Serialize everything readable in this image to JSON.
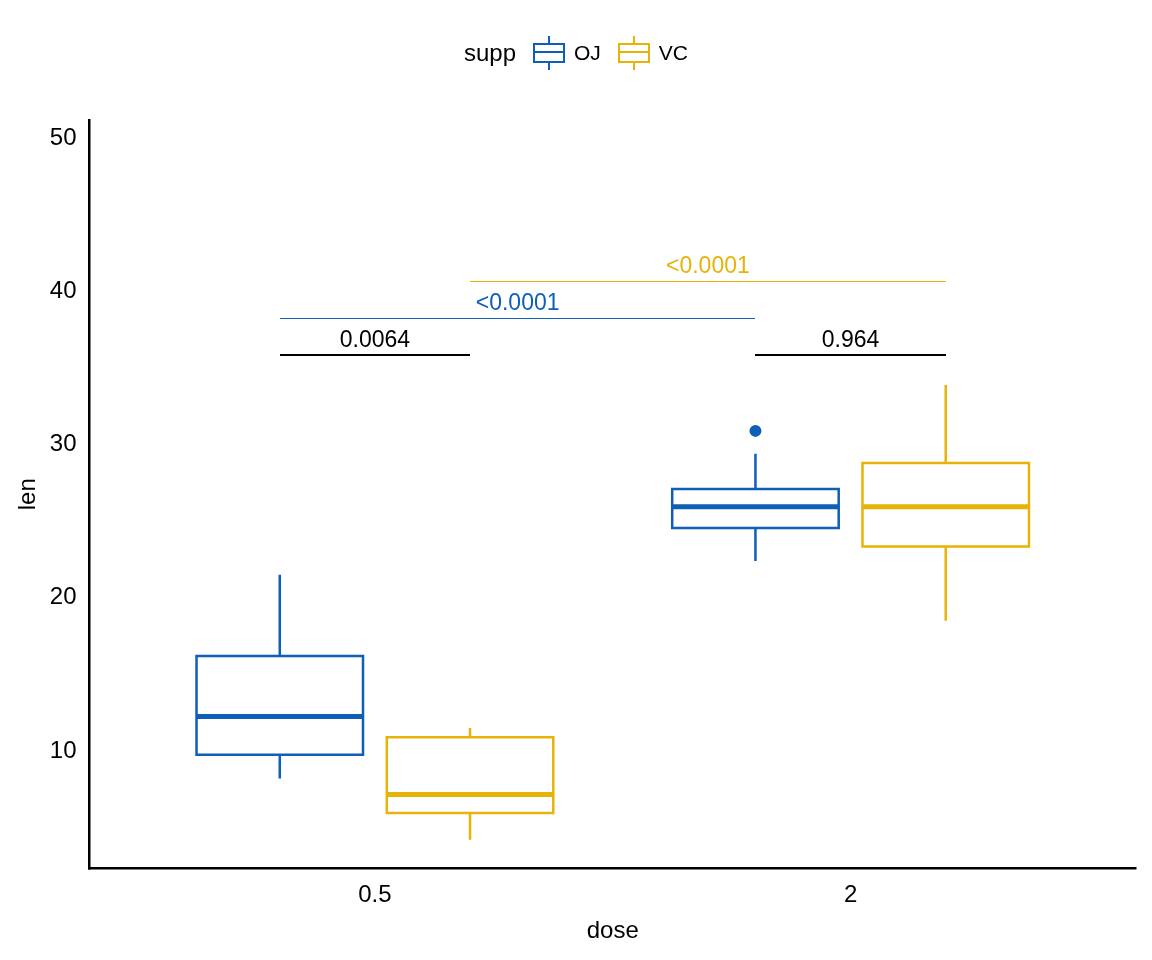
{
  "chart_data": {
    "type": "box",
    "xlabel": "dose",
    "ylabel": "len",
    "legend_title": "supp",
    "legend": "top",
    "grid": false,
    "categories": [
      "0.5",
      "2"
    ],
    "ylim": [
      2.33,
      51.2
    ],
    "yticks": [
      10,
      20,
      30,
      40,
      50
    ],
    "series": [
      {
        "name": "OJ",
        "color": "#0d5fb8",
        "boxes": [
          {
            "low": 8.2,
            "q1": 9.75,
            "median": 12.25,
            "q3": 16.2,
            "high": 21.5
          },
          {
            "low": 22.4,
            "q1": 24.55,
            "median": 25.95,
            "q3": 27.1,
            "high": 29.4,
            "outliers": [
              30.9
            ]
          }
        ]
      },
      {
        "name": "VC",
        "color": "#e8b308",
        "boxes": [
          {
            "low": 4.2,
            "q1": 5.95,
            "median": 7.15,
            "q3": 10.9,
            "high": 11.5
          },
          {
            "low": 18.5,
            "q1": 23.35,
            "median": 25.95,
            "q3": 28.8,
            "high": 33.9
          }
        ]
      }
    ],
    "annotations": [
      "0.0064",
      "0.964",
      "<0.0001",
      "<0.0001"
    ]
  }
}
